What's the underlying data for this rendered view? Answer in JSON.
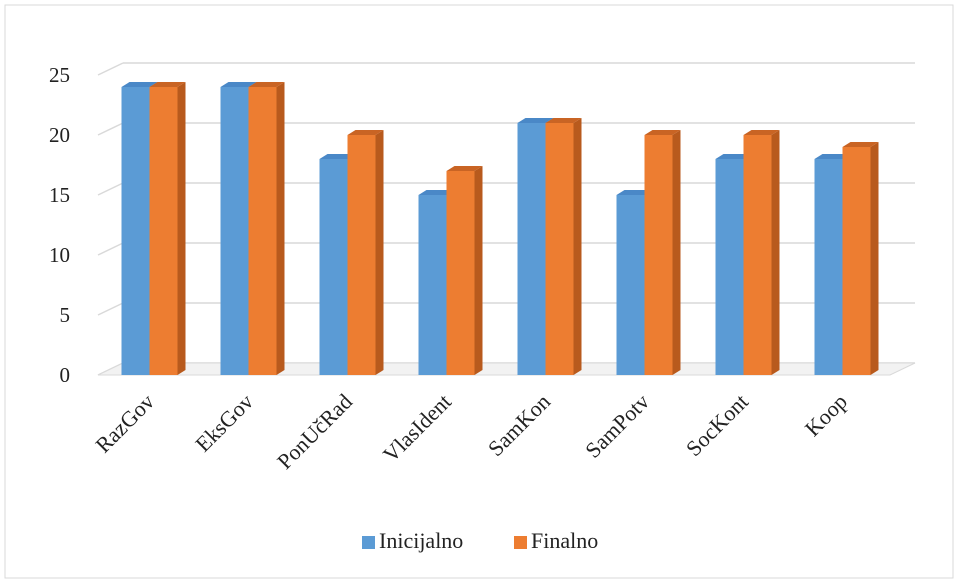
{
  "chart_data": {
    "type": "bar",
    "style": "3d-clustered-column",
    "categories": [
      "RazGov",
      "EksGov",
      "PonUčRad",
      "VlasIdent",
      "SamKon",
      "SamPotv",
      "SocKont",
      "Koop"
    ],
    "series": [
      {
        "name": "Inicijalno",
        "values": [
          24,
          24,
          18,
          15,
          21,
          15,
          18,
          18
        ],
        "color": "#5b9bd5",
        "side_color": "#3f7ab8",
        "top_color": "#4a88c7"
      },
      {
        "name": "Finalno",
        "values": [
          24,
          24,
          20,
          17,
          21,
          20,
          20,
          19
        ],
        "color": "#ed7d31",
        "side_color": "#b85a1d",
        "top_color": "#c96424"
      }
    ],
    "ylim": [
      0,
      25
    ],
    "yticks": [
      0,
      5,
      10,
      15,
      20,
      25
    ],
    "grid": true,
    "legend": "bottom",
    "title": "",
    "xlabel": "",
    "ylabel": ""
  },
  "colors": {
    "grid": "#d9d9d9",
    "floor": "#d9d9d9",
    "border": "#d9d9d9"
  }
}
